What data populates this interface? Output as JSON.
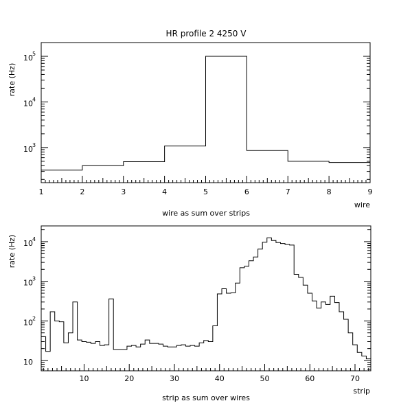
{
  "chart_data": [
    {
      "type": "step",
      "title": "HR profile 2 4250 V",
      "xlabel": "wire",
      "xcaption": "wire as sum over strips",
      "ylabel": "rate (Hz)",
      "yscale": "log",
      "xlim": [
        1,
        9
      ],
      "ylim": [
        170,
        200000
      ],
      "xticks": [
        "1",
        "2",
        "3",
        "4",
        "5",
        "6",
        "7",
        "8",
        "9"
      ],
      "yticks": [
        {
          "value": 1000,
          "base": "10",
          "exp": "3"
        },
        {
          "value": 10000,
          "base": "10",
          "exp": "4"
        },
        {
          "value": 100000,
          "base": "10",
          "exp": "5"
        }
      ],
      "bins": [
        {
          "x0": 1,
          "x1": 2,
          "y": 320
        },
        {
          "x0": 2,
          "x1": 3,
          "y": 400
        },
        {
          "x0": 3,
          "x1": 4,
          "y": 490
        },
        {
          "x0": 4,
          "x1": 5,
          "y": 1080
        },
        {
          "x0": 5,
          "x1": 6,
          "y": 100000
        },
        {
          "x0": 6,
          "x1": 7,
          "y": 860
        },
        {
          "x0": 7,
          "x1": 8,
          "y": 500
        },
        {
          "x0": 8,
          "x1": 9,
          "y": 470
        },
        {
          "x0": 9,
          "x1": 9,
          "y": 470
        }
      ]
    },
    {
      "type": "step",
      "xlabel": "strip",
      "xcaption": "strip as sum over wires",
      "ylabel": "rate (Hz)",
      "yscale": "log",
      "xlim": [
        0.5,
        73.5
      ],
      "ylim": [
        5.5,
        25000
      ],
      "xticks": [
        "10",
        "20",
        "30",
        "40",
        "50",
        "60",
        "70"
      ],
      "xtick_values": [
        10,
        20,
        30,
        40,
        50,
        60,
        70
      ],
      "yticks": [
        {
          "value": 10,
          "base": "10",
          "exp": ""
        },
        {
          "value": 100,
          "base": "10",
          "exp": "2"
        },
        {
          "value": 1000,
          "base": "10",
          "exp": "3"
        },
        {
          "value": 10000,
          "base": "10",
          "exp": "4"
        }
      ],
      "values": [
        40,
        17,
        170,
        100,
        95,
        28,
        50,
        300,
        33,
        30,
        29,
        27,
        30,
        24,
        25,
        360,
        19,
        19,
        19,
        23,
        24,
        22,
        26,
        33,
        27,
        27,
        26,
        23,
        22,
        22,
        24,
        25,
        23,
        24,
        23,
        28,
        32,
        30,
        75,
        480,
        650,
        500,
        510,
        900,
        2200,
        2400,
        3300,
        4100,
        6500,
        9700,
        12500,
        10700,
        9500,
        9000,
        8500,
        8200,
        1500,
        1250,
        800,
        500,
        320,
        210,
        300,
        260,
        420,
        290,
        170,
        110,
        50,
        25,
        16,
        13,
        11
      ]
    }
  ]
}
